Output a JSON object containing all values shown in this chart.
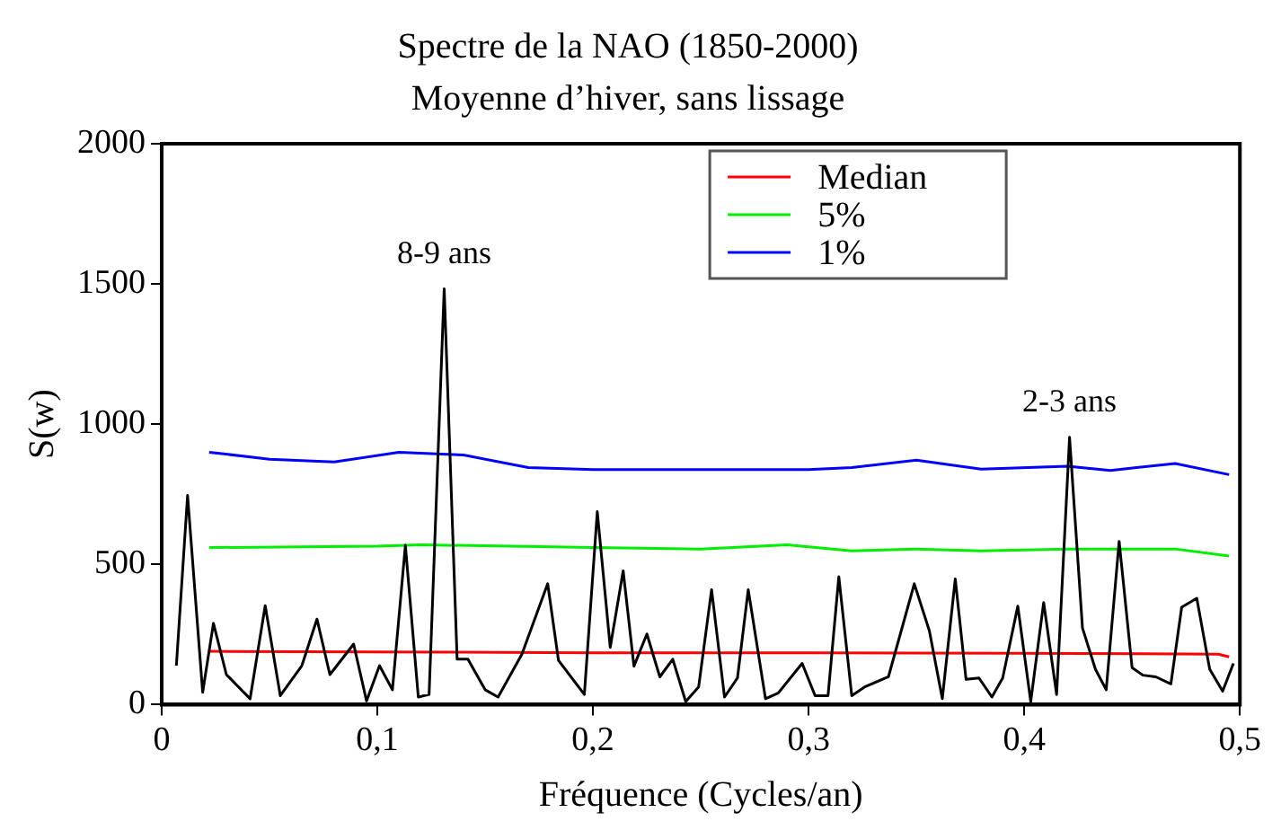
{
  "chart_data": {
    "type": "line",
    "title": "Spectre de la NAO (1850-2000)",
    "subtitle": "Moyenne d’hiver, sans lissage",
    "xlabel": "Fréquence (Cycles/an)",
    "ylabel": "S(w)",
    "xlim": [
      0,
      0.5
    ],
    "xticks": [
      0,
      {
        "value": 0.1,
        "label": "0,1"
      },
      {
        "value": 0.2,
        "label": "0,2"
      },
      {
        "value": 0.3,
        "label": "0,3"
      },
      {
        "value": 0.4,
        "label": "0,4"
      },
      {
        "value": 0.5,
        "label": "0,5"
      }
    ],
    "ylim": [
      0,
      2000
    ],
    "yticks": [
      0,
      500,
      1000,
      1500,
      2000
    ],
    "grid": false,
    "legend": "top",
    "marker": "none",
    "line_style": "solid",
    "annotations": [
      {
        "text": "8-9 ans",
        "x": 0.131,
        "y": 1483
      },
      {
        "text": "2-3 ans",
        "x": 0.421,
        "y": 953
      }
    ],
    "series": [
      {
        "color": "#000000",
        "x": [
          0.0068,
          0.012,
          0.019,
          0.024,
          0.03,
          0.041,
          0.048,
          0.055,
          0.065,
          0.072,
          0.078,
          0.089,
          0.095,
          0.101,
          0.107,
          0.113,
          0.119,
          0.124,
          0.131,
          0.137,
          0.142,
          0.15,
          0.156,
          0.167,
          0.179,
          0.184,
          0.196,
          0.202,
          0.208,
          0.214,
          0.219,
          0.225,
          0.231,
          0.237,
          0.243,
          0.249,
          0.255,
          0.261,
          0.267,
          0.272,
          0.28,
          0.286,
          0.297,
          0.303,
          0.309,
          0.314,
          0.32,
          0.326,
          0.337,
          0.349,
          0.356,
          0.362,
          0.368,
          0.373,
          0.379,
          0.385,
          0.39,
          0.397,
          0.403,
          0.409,
          0.415,
          0.421,
          0.427,
          0.433,
          0.438,
          0.444,
          0.45,
          0.455,
          0.461,
          0.468,
          0.473,
          0.48,
          0.486,
          0.492,
          0.497
        ],
        "values": [
          139,
          746,
          44,
          290,
          107,
          21,
          353,
          32,
          139,
          305,
          107,
          216,
          13,
          139,
          53,
          568,
          27,
          36,
          1483,
          162,
          162,
          53,
          27,
          179,
          431,
          158,
          36,
          688,
          204,
          477,
          137,
          252,
          99,
          162,
          11,
          63,
          410,
          27,
          95,
          410,
          21,
          42,
          147,
          32,
          32,
          456,
          32,
          63,
          99,
          431,
          263,
          21,
          448,
          90,
          95,
          27,
          95,
          351,
          11,
          364,
          36,
          953,
          273,
          126,
          53,
          582,
          132,
          105,
          99,
          74,
          347,
          379,
          126,
          48,
          147
        ]
      },
      {
        "name": "Median",
        "color": "#ff0000",
        "x": [
          0.022,
          0.1,
          0.2,
          0.3,
          0.4,
          0.49,
          0.495
        ],
        "values": [
          190,
          188,
          185,
          185,
          183,
          180,
          170
        ]
      },
      {
        "name": "5%",
        "color": "#00ee00",
        "x": [
          0.022,
          0.1,
          0.12,
          0.2,
          0.25,
          0.29,
          0.32,
          0.35,
          0.38,
          0.42,
          0.47,
          0.495
        ],
        "values": [
          560,
          565,
          570,
          560,
          555,
          570,
          548,
          555,
          548,
          555,
          555,
          530
        ]
      },
      {
        "name": "1%",
        "color": "#0000ff",
        "x": [
          0.022,
          0.05,
          0.08,
          0.11,
          0.14,
          0.17,
          0.2,
          0.25,
          0.3,
          0.32,
          0.35,
          0.38,
          0.42,
          0.44,
          0.47,
          0.495
        ],
        "values": [
          900,
          875,
          865,
          900,
          890,
          845,
          838,
          838,
          838,
          845,
          872,
          840,
          850,
          835,
          860,
          820
        ]
      }
    ]
  }
}
